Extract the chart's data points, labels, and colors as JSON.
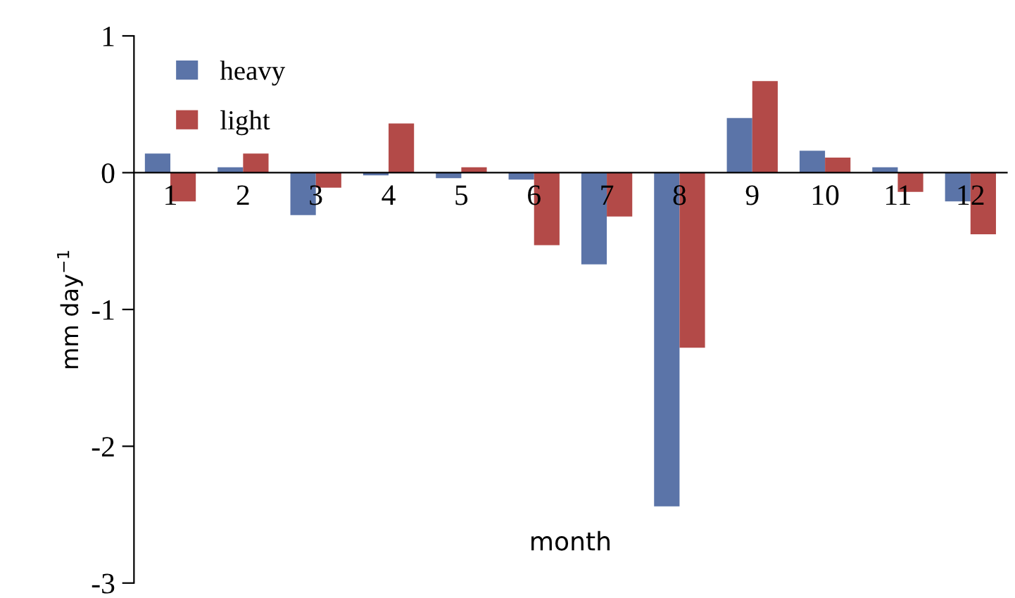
{
  "chart_data": {
    "type": "bar",
    "xlabel": "month",
    "ylabel": "mm day$^{−1}$",
    "categories": [
      "1",
      "2",
      "3",
      "4",
      "5",
      "6",
      "7",
      "8",
      "9",
      "10",
      "11",
      "12"
    ],
    "series": [
      {
        "name": "heavy",
        "color": "#5b74a8",
        "values": [
          0.14,
          0.04,
          -0.31,
          -0.02,
          -0.04,
          -0.05,
          -0.67,
          -2.44,
          0.4,
          0.16,
          0.04,
          -0.21
        ]
      },
      {
        "name": "light",
        "color": "#b34a48",
        "values": [
          -0.21,
          0.14,
          -0.11,
          0.36,
          0.04,
          -0.53,
          -0.32,
          -1.28,
          0.67,
          0.11,
          -0.14,
          -0.45
        ]
      }
    ],
    "ylim": [
      -3,
      1
    ],
    "yticks": [
      -3,
      -2,
      -1,
      0,
      1
    ],
    "grid": false,
    "legend": "top left"
  }
}
